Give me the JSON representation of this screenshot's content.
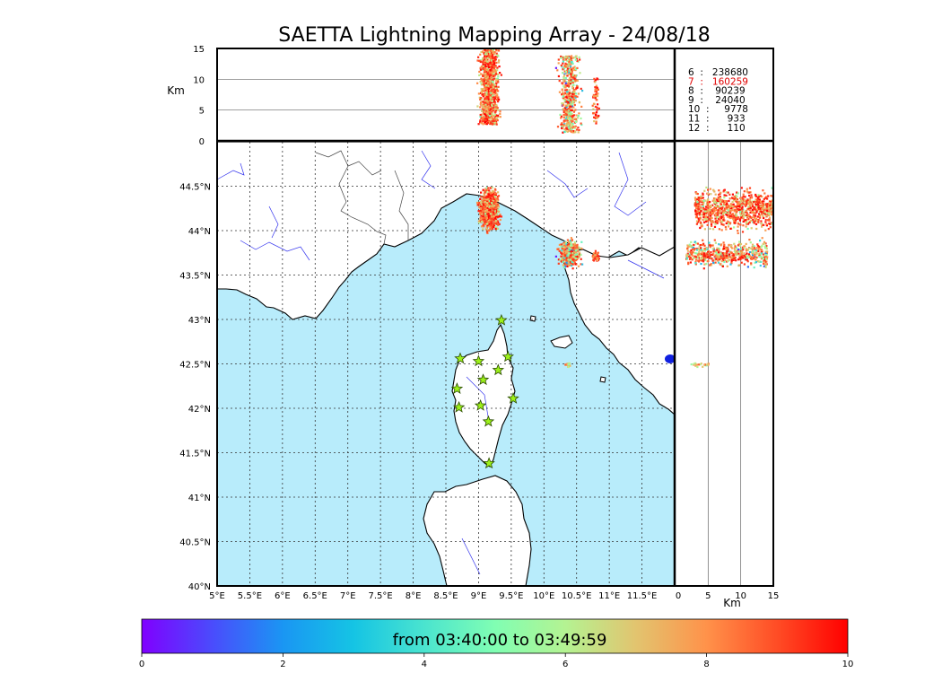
{
  "chart_data": {
    "type": "scatter",
    "title": "SAETTA Lightning Mapping Array - 24/08/18",
    "map": {
      "xlim": [
        5,
        12
      ],
      "ylim": [
        40,
        45
      ],
      "x_ticks": [
        "5°E",
        "5.5°E",
        "6°E",
        "6.5°E",
        "7°E",
        "7.5°E",
        "8°E",
        "8.5°E",
        "9°E",
        "9.5°E",
        "10°E",
        "10.5°E",
        "11°E",
        "11.5°E"
      ],
      "y_ticks": [
        "40°N",
        "40.5°N",
        "41°N",
        "41.5°N",
        "42°N",
        "42.5°N",
        "43°N",
        "43.5°N",
        "44°N",
        "44.5°N"
      ],
      "sea_color": "#b8ecfb",
      "land_color": "#ffffff",
      "grid": true
    },
    "top_panel": {
      "ylabel": "Km",
      "ylim": [
        0,
        15
      ],
      "y_ticks": [
        "0",
        "5",
        "10",
        "15"
      ],
      "grid_lines": [
        5,
        10
      ]
    },
    "right_panel": {
      "xlabel": "Km",
      "xlim": [
        0,
        15
      ],
      "x_ticks": [
        "0",
        "5",
        "10",
        "15"
      ],
      "grid_lines": [
        5,
        10
      ]
    },
    "station_counts": [
      {
        "label": "6  :   238680",
        "color": "#000000"
      },
      {
        "label": "7  :   160259",
        "color": "#e00000"
      },
      {
        "label": "8  :    90239",
        "color": "#000000"
      },
      {
        "label": "9  :    24040",
        "color": "#000000"
      },
      {
        "label": "10  :     9778",
        "color": "#000000"
      },
      {
        "label": "11  :      933",
        "color": "#000000"
      },
      {
        "label": "12  :      110",
        "color": "#000000"
      }
    ],
    "stations": [
      {
        "lon": 9.35,
        "lat": 42.99
      },
      {
        "lon": 8.72,
        "lat": 42.56
      },
      {
        "lon": 9.0,
        "lat": 42.53
      },
      {
        "lon": 9.45,
        "lat": 42.58
      },
      {
        "lon": 9.3,
        "lat": 42.43
      },
      {
        "lon": 9.07,
        "lat": 42.32
      },
      {
        "lon": 8.67,
        "lat": 42.22
      },
      {
        "lon": 9.53,
        "lat": 42.11
      },
      {
        "lon": 8.7,
        "lat": 42.01
      },
      {
        "lon": 9.03,
        "lat": 42.03
      },
      {
        "lon": 9.15,
        "lat": 41.85
      },
      {
        "lon": 9.16,
        "lat": 41.38
      }
    ],
    "clusters": [
      {
        "lon": [
          8.95,
          9.35
        ],
        "lat": [
          43.95,
          44.55
        ],
        "alt": [
          2.8,
          15
        ],
        "n": 900,
        "tmin": 4,
        "tmax": 10
      },
      {
        "lon": [
          10.15,
          10.6
        ],
        "lat": [
          43.55,
          43.95
        ],
        "alt": [
          1.5,
          14
        ],
        "n": 500,
        "tmin": 0,
        "tmax": 10
      },
      {
        "lon": [
          10.7,
          10.85
        ],
        "lat": [
          43.65,
          43.8
        ],
        "alt": [
          3,
          11
        ],
        "n": 60,
        "tmin": 6,
        "tmax": 10
      },
      {
        "lon": [
          10.3,
          10.4
        ],
        "lat": [
          42.47,
          42.53
        ],
        "alt": [
          2,
          5
        ],
        "n": 20,
        "tmin": 2,
        "tmax": 9
      }
    ],
    "colorbar": {
      "label": "from 03:40:00 to 03:49:59",
      "range": [
        0,
        10
      ],
      "ticks": [
        "0",
        "2",
        "4",
        "6",
        "8",
        "10"
      ],
      "colormap": "rainbow"
    }
  }
}
